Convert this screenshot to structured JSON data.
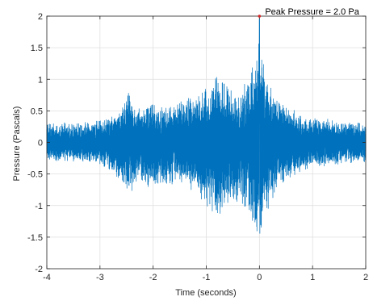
{
  "chart_data": {
    "type": "line",
    "title": "",
    "xlabel": "Time (seconds)",
    "ylabel": "Pressure (Pascals)",
    "xlim": [
      -4,
      2
    ],
    "ylim": [
      -2,
      2
    ],
    "xticks": [
      -4,
      -3,
      -2,
      -1,
      0,
      1,
      2
    ],
    "xtick_labels": [
      "-4",
      "-3",
      "-2",
      "-1",
      "0",
      "1",
      "2"
    ],
    "yticks": [
      -2,
      -1.5,
      -1,
      -0.5,
      0,
      0.5,
      1,
      1.5,
      2
    ],
    "ytick_labels": [
      "-2",
      "-1.5",
      "-1",
      "-0.5",
      "0",
      "0.5",
      "1",
      "1.5",
      "2"
    ],
    "grid": true,
    "series": [
      {
        "color": "#0072bd",
        "envelope": {
          "x": [
            -4.0,
            -3.5,
            -3.0,
            -2.6,
            -2.45,
            -2.3,
            -2.0,
            -1.8,
            -1.5,
            -1.2,
            -1.0,
            -0.8,
            -0.5,
            -0.3,
            -0.1,
            0.0,
            0.1,
            0.3,
            0.6,
            0.8,
            1.0,
            1.5,
            2.0
          ],
          "upper": [
            0.3,
            0.3,
            0.35,
            0.5,
            0.85,
            0.55,
            0.6,
            0.55,
            0.65,
            0.75,
            0.9,
            1.05,
            0.8,
            0.95,
            1.25,
            1.95,
            1.1,
            0.7,
            0.55,
            0.4,
            0.4,
            0.35,
            0.3
          ],
          "lower": [
            -0.3,
            -0.3,
            -0.35,
            -0.6,
            -0.85,
            -0.6,
            -0.75,
            -0.7,
            -0.65,
            -0.8,
            -1.0,
            -1.2,
            -0.9,
            -1.1,
            -1.45,
            -1.8,
            -1.2,
            -0.75,
            -0.55,
            -0.45,
            -0.4,
            -0.35,
            -0.3
          ]
        }
      }
    ],
    "annotations": [
      {
        "text": "Peak Pressure =  2.0 Pa",
        "x": 0.0,
        "y": 2.0,
        "marker_color": "#d62728"
      }
    ]
  }
}
